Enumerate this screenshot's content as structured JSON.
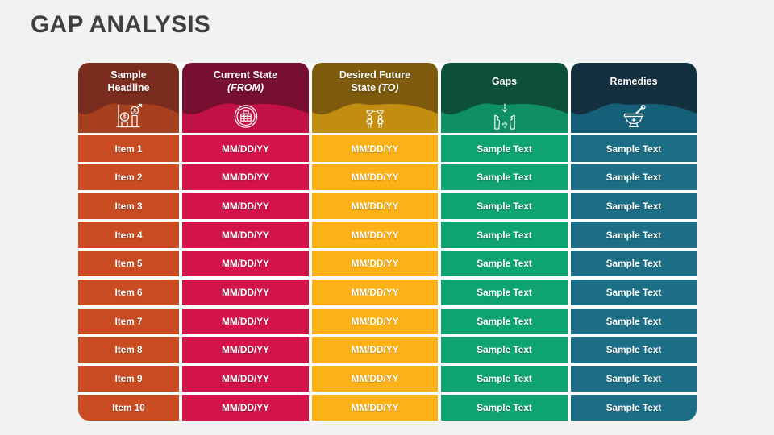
{
  "title": "GAP ANALYSIS",
  "theme": {
    "page_bg": "#f1f2f2",
    "gap_lines": "#ffffff",
    "title_color": "#3f3f3f",
    "text_color": "#ffffff"
  },
  "table": {
    "columns": [
      {
        "key": "headline",
        "header_line1": "Sample",
        "header_line2": "Headline",
        "header_line2_italic": "",
        "icon": "money-growth-chart-icon",
        "header_bg": "#7a2c1e",
        "wave_bg": "#a6401e",
        "cell_bg": "#c84b21"
      },
      {
        "key": "current-state",
        "header_line1": "Current State",
        "header_line2": "",
        "header_line2_italic": "(FROM)",
        "icon": "brick-globe-icon",
        "header_bg": "#760f30",
        "wave_bg": "#c31147",
        "cell_bg": "#d3134a"
      },
      {
        "key": "desired-future-state",
        "header_line1": "Desired Future",
        "header_line2": "State",
        "header_line2_italic": "(TO)",
        "icon": "couple-hearts-icon",
        "header_bg": "#7d5a0d",
        "wave_bg": "#c28e10",
        "cell_bg": "#fcb216"
      },
      {
        "key": "gaps",
        "header_line1": "Gaps",
        "header_line2": "",
        "header_line2_italic": "",
        "icon": "torn-gap-arrow-icon",
        "header_bg": "#0d5039",
        "wave_bg": "#0f9064",
        "cell_bg": "#0fa273"
      },
      {
        "key": "remedies",
        "header_line1": "Remedies",
        "header_line2": "",
        "header_line2_italic": "",
        "icon": "mortar-pestle-icon",
        "header_bg": "#14303e",
        "wave_bg": "#165f78",
        "cell_bg": "#1b6e85"
      }
    ],
    "rows": [
      [
        "Item 1",
        "MM/DD/YY",
        "MM/DD/YY",
        "Sample Text",
        "Sample Text"
      ],
      [
        "Item 2",
        "MM/DD/YY",
        "MM/DD/YY",
        "Sample Text",
        "Sample Text"
      ],
      [
        "Item 3",
        "MM/DD/YY",
        "MM/DD/YY",
        "Sample Text",
        "Sample Text"
      ],
      [
        "Item 4",
        "MM/DD/YY",
        "MM/DD/YY",
        "Sample Text",
        "Sample Text"
      ],
      [
        "Item 5",
        "MM/DD/YY",
        "MM/DD/YY",
        "Sample Text",
        "Sample Text"
      ],
      [
        "Item 6",
        "MM/DD/YY",
        "MM/DD/YY",
        "Sample Text",
        "Sample Text"
      ],
      [
        "Item 7",
        "MM/DD/YY",
        "MM/DD/YY",
        "Sample Text",
        "Sample Text"
      ],
      [
        "Item 8",
        "MM/DD/YY",
        "MM/DD/YY",
        "Sample Text",
        "Sample Text"
      ],
      [
        "Item 9",
        "MM/DD/YY",
        "MM/DD/YY",
        "Sample Text",
        "Sample Text"
      ],
      [
        "Item 10",
        "MM/DD/YY",
        "MM/DD/YY",
        "Sample Text",
        "Sample Text"
      ]
    ]
  }
}
